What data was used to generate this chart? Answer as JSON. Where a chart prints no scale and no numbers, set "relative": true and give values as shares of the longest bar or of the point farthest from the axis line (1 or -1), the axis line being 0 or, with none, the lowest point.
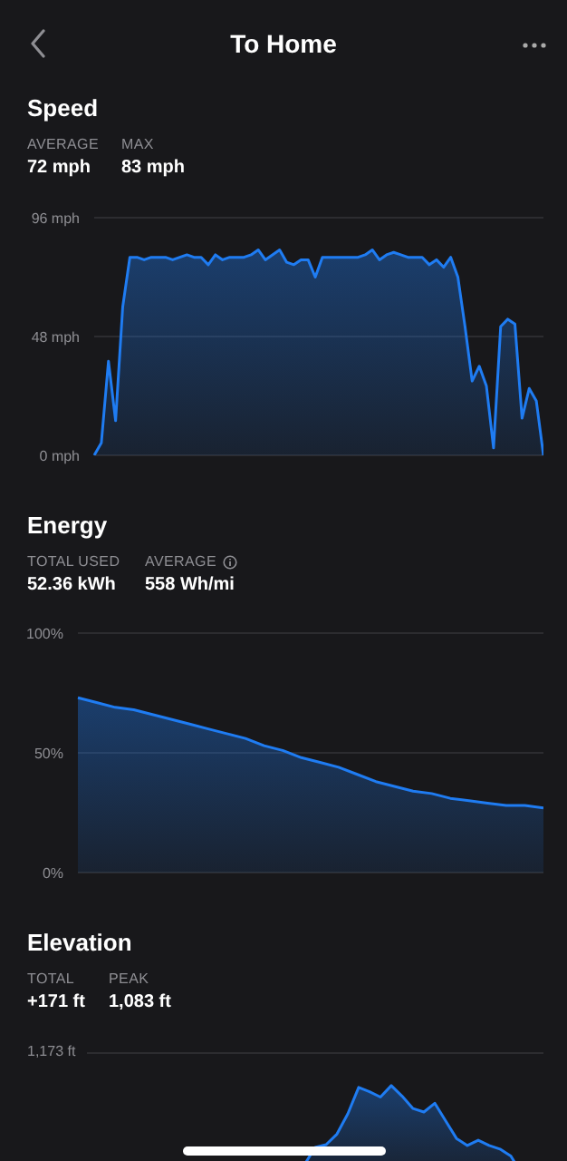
{
  "chart_data": [
    {
      "type": "area",
      "title": "Speed",
      "annotations": [
        "To Home",
        "AVERAGE",
        "72 mph",
        "MAX",
        "83 mph"
      ],
      "categories": [
        null,
        null,
        null,
        null,
        null,
        null,
        null,
        null,
        null,
        null,
        null,
        null,
        null,
        null,
        null,
        null,
        null,
        null,
        null,
        null,
        null,
        null,
        null,
        null,
        null,
        null,
        null,
        null,
        null,
        null,
        null,
        null,
        null,
        null,
        null,
        null,
        null,
        null,
        null,
        null,
        null,
        null,
        null,
        null,
        null,
        null,
        null,
        null,
        null,
        null,
        null,
        null,
        null,
        null,
        null,
        null,
        null,
        null,
        null,
        null,
        null,
        null,
        null,
        null
      ],
      "series": [
        {
          "color": "#1f7cf2",
          "values": [
            0,
            5,
            38,
            14,
            60,
            80,
            80,
            79,
            80,
            80,
            80,
            79,
            80,
            81,
            80,
            80,
            77,
            81,
            79,
            80,
            80,
            80,
            81,
            83,
            79,
            81,
            83,
            78,
            77,
            79,
            79,
            72,
            80,
            80,
            80,
            80,
            80,
            80,
            81,
            83,
            79,
            81,
            82,
            81,
            80,
            80,
            80,
            77,
            79,
            76,
            80,
            72,
            52,
            30,
            36,
            28,
            3,
            52,
            55,
            53,
            15,
            27,
            22,
            0
          ]
        }
      ],
      "ylim": [
        0,
        96
      ],
      "yticks": [
        {
          "value": 0,
          "label": "0 mph"
        },
        {
          "value": 48,
          "label": "48 mph"
        },
        {
          "value": 96,
          "label": "96 mph"
        }
      ],
      "grid": "y",
      "tick_labels": "y"
    },
    {
      "type": "area",
      "title": "Energy",
      "annotations": [
        "TOTAL USED",
        "52.36 kWh",
        "AVERAGE",
        "558 Wh/mi"
      ],
      "categories": [
        null,
        null,
        null,
        null,
        null,
        null,
        null,
        null,
        null,
        null,
        null,
        null,
        null,
        null,
        null,
        null,
        null,
        null,
        null,
        null,
        null,
        null,
        null,
        null,
        null,
        null
      ],
      "series": [
        {
          "color": "#1f7cf2",
          "values": [
            73,
            71,
            69,
            68,
            66,
            64,
            62,
            60,
            58,
            56,
            53,
            51,
            48,
            46,
            44,
            41,
            38,
            36,
            34,
            33,
            31,
            30,
            29,
            28,
            28,
            27
          ]
        }
      ],
      "ylim": [
        0,
        100
      ],
      "yticks": [
        {
          "value": 0,
          "label": "0%"
        },
        {
          "value": 50,
          "label": "50%"
        },
        {
          "value": 100,
          "label": "100%"
        }
      ],
      "grid": "y",
      "tick_labels": "y"
    },
    {
      "type": "area",
      "title": "Elevation",
      "annotations": [
        "TOTAL",
        "+171 ft",
        "PEAK",
        "1,083 ft",
        "1,173 ft"
      ],
      "relative": true,
      "categories": [
        null,
        null,
        null,
        null,
        null,
        null,
        null,
        null,
        null,
        null,
        null,
        null,
        null,
        null,
        null,
        null,
        null,
        null,
        null,
        null,
        null,
        null,
        null,
        null,
        null,
        null,
        null,
        null,
        null,
        null,
        null,
        null,
        null,
        null,
        null,
        null,
        null,
        null,
        null,
        null,
        null,
        null,
        null,
        null,
        null,
        null,
        null,
        null,
        null,
        null,
        null
      ],
      "series": [
        {
          "color": "#1f7cf2",
          "values": [
            null,
            null,
            null,
            null,
            null,
            null,
            null,
            null,
            null,
            null,
            null,
            null,
            null,
            null,
            null,
            null,
            null,
            null,
            null,
            null,
            null,
            null,
            null,
            null,
            null,
            null,
            null,
            null,
            0.1,
            0.3,
            0.33,
            0.45,
            0.68,
            0.98,
            0.93,
            0.87,
            1,
            0.88,
            0.74,
            0.7,
            0.8,
            0.6,
            0.4,
            0.32,
            0.38,
            0.32,
            0.28,
            0.2,
            0,
            null,
            null
          ]
        }
      ],
      "tick_labels": false
    }
  ]
}
